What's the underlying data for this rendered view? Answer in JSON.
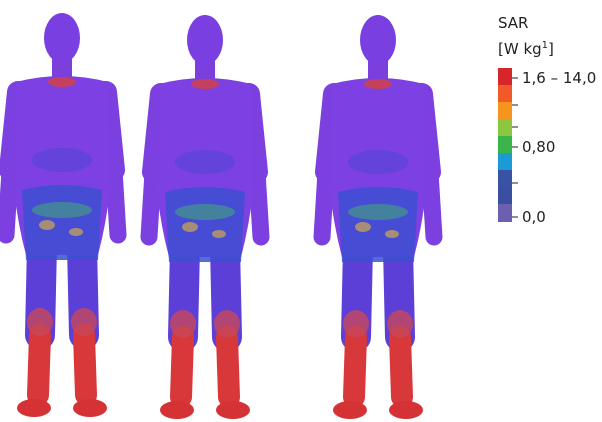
{
  "legend": {
    "title": "SAR",
    "unit": "[W kg",
    "unit_exponent": "1",
    "unit_close": "]",
    "labels": [
      "1,6 – 14,0",
      "0,80",
      "0,0"
    ]
  }
}
